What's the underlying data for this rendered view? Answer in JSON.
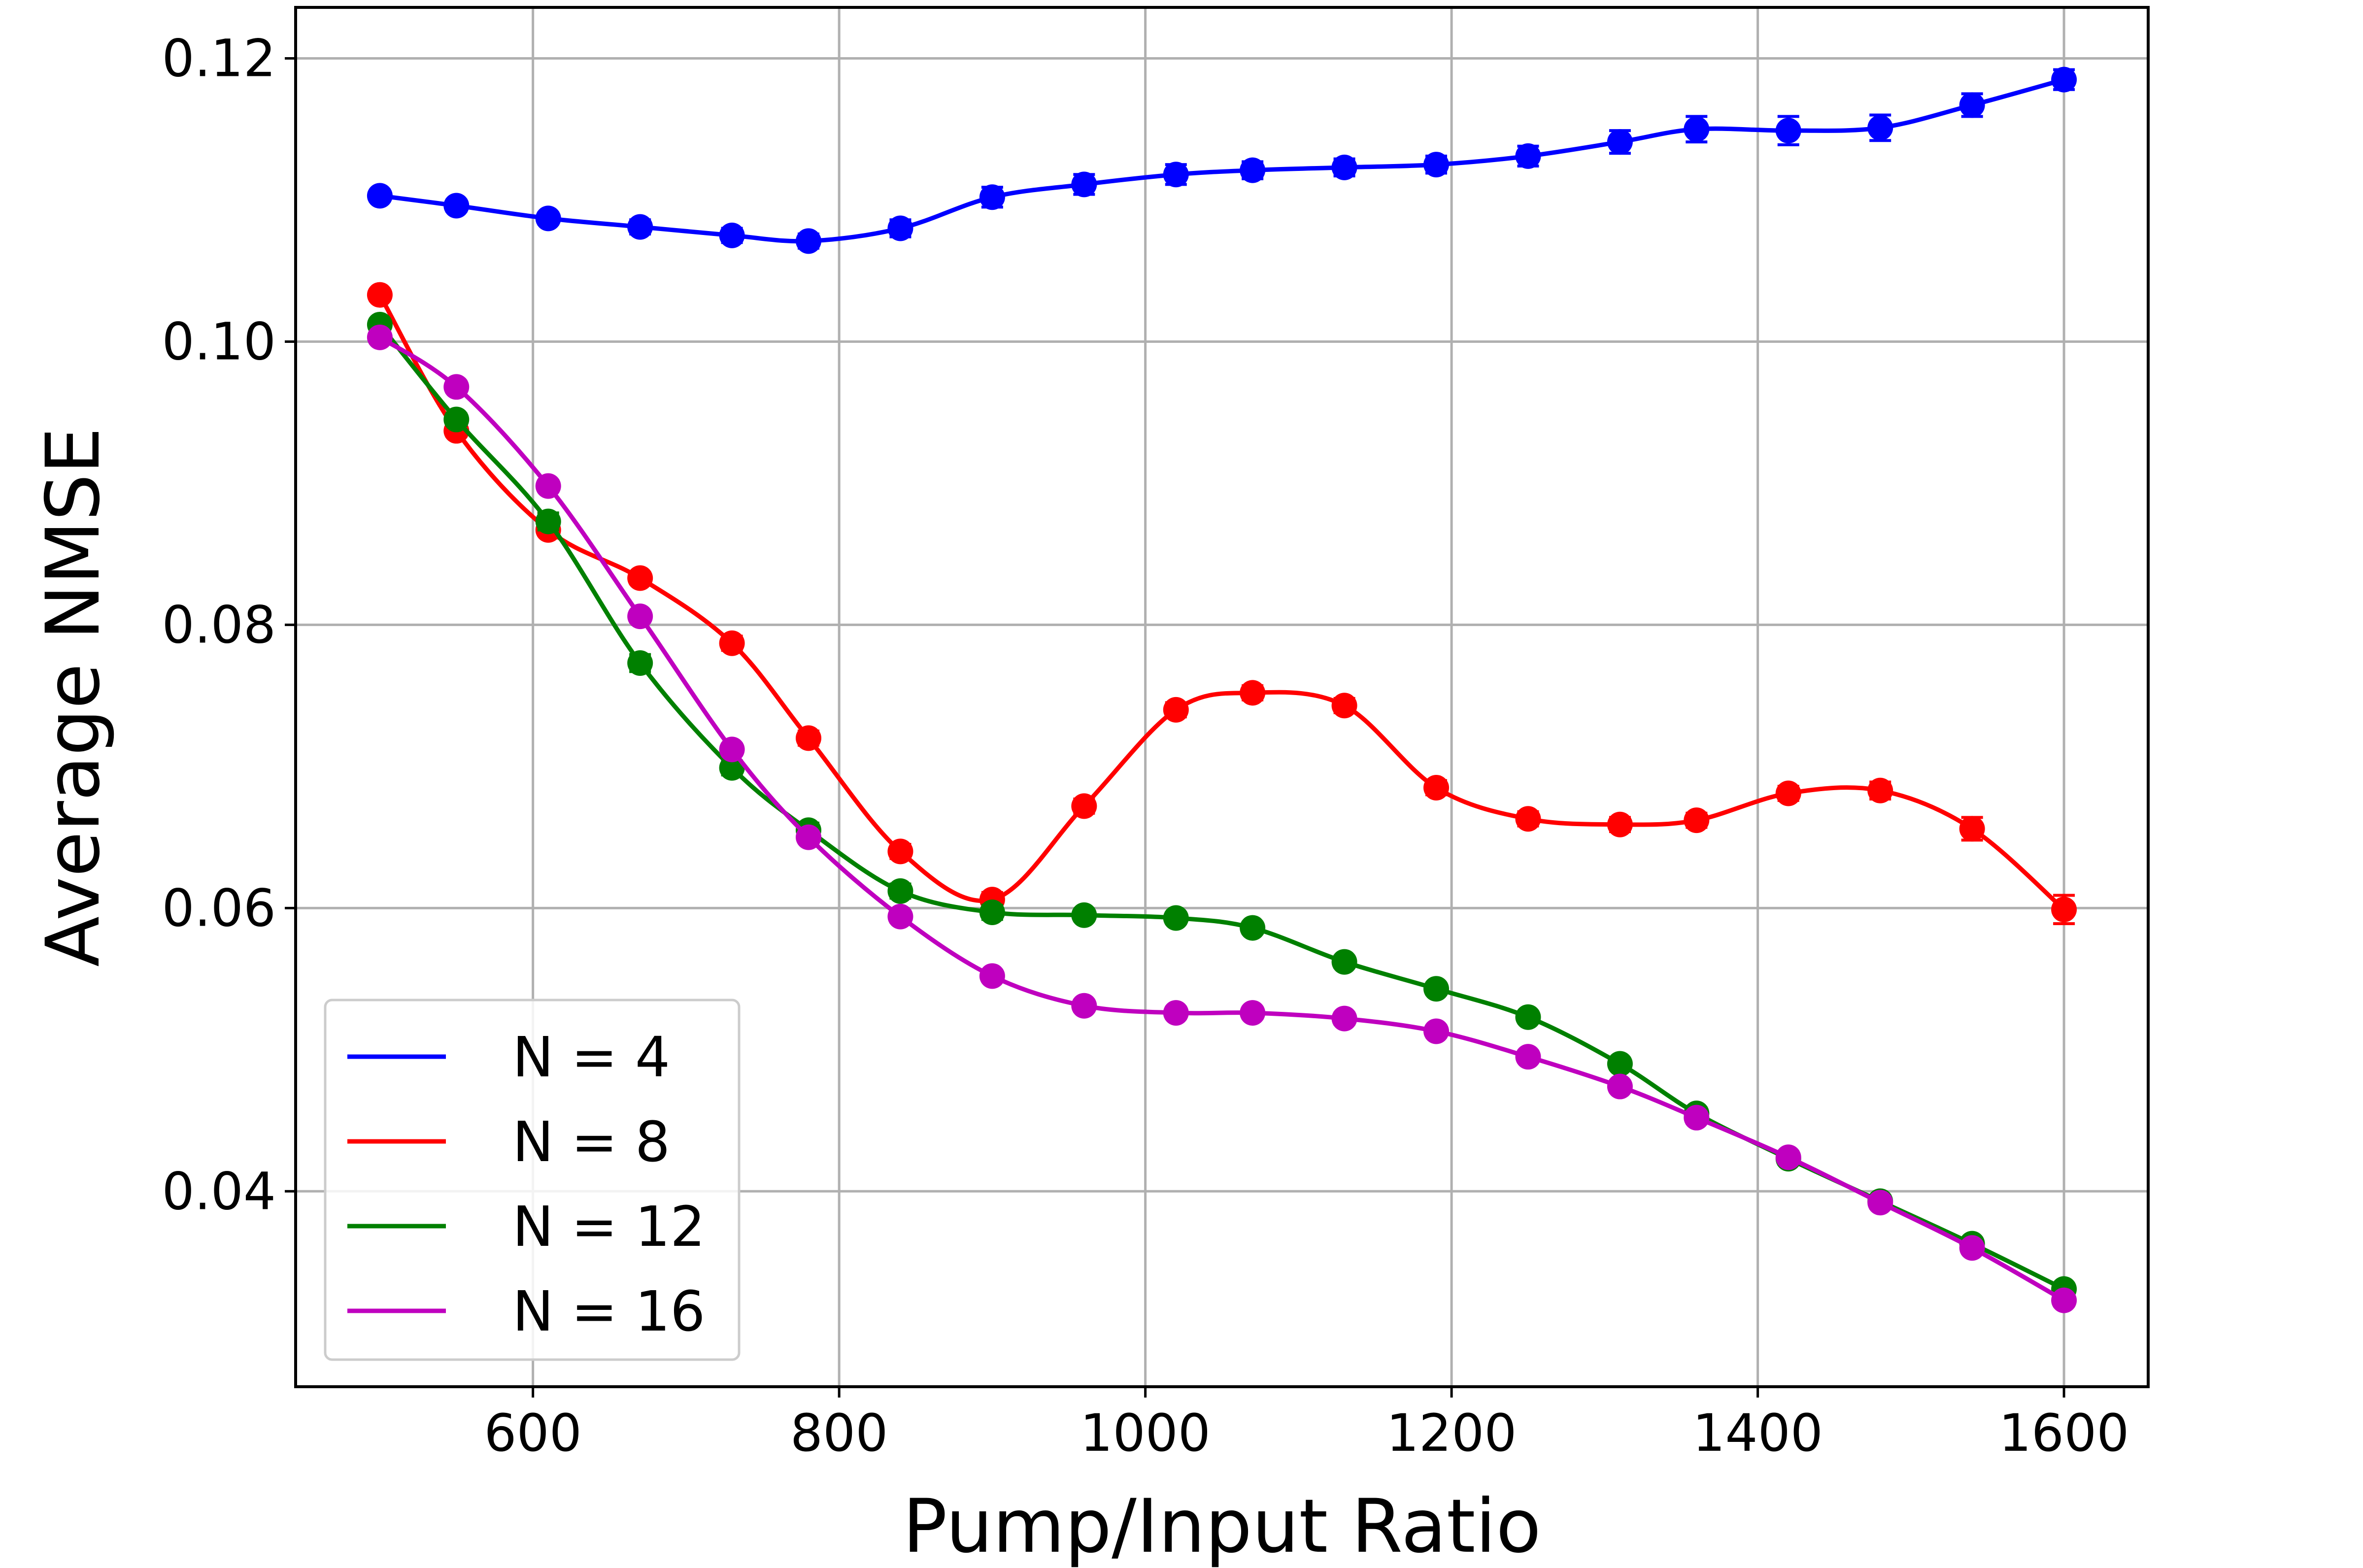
{
  "chart_data": {
    "type": "line",
    "title": "",
    "xlabel": "Pump/Input Ratio",
    "ylabel": "Average NMSE",
    "xlim": [
      445,
      1655
    ],
    "ylim": [
      0.0262,
      0.1236
    ],
    "xticks": [
      600,
      800,
      1000,
      1200,
      1400,
      1600
    ],
    "yticks": [
      0.04,
      0.06,
      0.08,
      0.1,
      0.12
    ],
    "ytick_labels": [
      "0.04",
      "0.06",
      "0.08",
      "0.10",
      "0.12"
    ],
    "grid": true,
    "legend_position": "lower-left",
    "x": [
      500,
      550,
      610,
      670,
      730,
      780,
      840,
      900,
      960,
      1020,
      1070,
      1130,
      1190,
      1250,
      1310,
      1360,
      1420,
      1480,
      1540,
      1600
    ],
    "series": [
      {
        "name": "N = 4",
        "color": "#0000ff",
        "values": [
          0.1103,
          0.1096,
          0.1087,
          0.1081,
          0.1075,
          0.1071,
          0.108,
          0.1102,
          0.1111,
          0.1118,
          0.1121,
          0.1123,
          0.1125,
          0.1131,
          0.1141,
          0.115,
          0.1149,
          0.1151,
          0.1167,
          0.1185
        ],
        "errors": [
          0.0004,
          0.0004,
          0.0004,
          0.0005,
          0.0005,
          0.0005,
          0.0006,
          0.0007,
          0.0007,
          0.0007,
          0.0006,
          0.0006,
          0.0006,
          0.0007,
          0.0008,
          0.0009,
          0.001,
          0.0009,
          0.0008,
          0.0007
        ]
      },
      {
        "name": "N = 8",
        "color": "#ff0000",
        "values": [
          0.1033,
          0.0937,
          0.0867,
          0.0833,
          0.0787,
          0.072,
          0.064,
          0.0606,
          0.0672,
          0.074,
          0.0752,
          0.0743,
          0.0685,
          0.0663,
          0.0659,
          0.0662,
          0.0681,
          0.0683,
          0.0656,
          0.0599
        ],
        "errors": [
          0.0004,
          0.0004,
          0.0004,
          0.0004,
          0.0005,
          0.0005,
          0.0005,
          0.0005,
          0.0005,
          0.0005,
          0.0005,
          0.0005,
          0.0005,
          0.0005,
          0.0005,
          0.0005,
          0.0005,
          0.0006,
          0.0008,
          0.001
        ]
      },
      {
        "name": "N = 12",
        "color": "#008000",
        "values": [
          0.1012,
          0.0945,
          0.0873,
          0.0773,
          0.0699,
          0.0655,
          0.0612,
          0.0597,
          0.0595,
          0.0593,
          0.0586,
          0.0562,
          0.0543,
          0.0523,
          0.049,
          0.0455,
          0.0423,
          0.0393,
          0.0363,
          0.0331
        ],
        "errors": [
          0.0004,
          0.0004,
          0.0006,
          0.0006,
          0.0005,
          0.0005,
          0.0005,
          0.0005,
          0.0004,
          0.0004,
          0.0004,
          0.0004,
          0.0004,
          0.0004,
          0.0004,
          0.0004,
          0.0004,
          0.0004,
          0.0004,
          0.0004
        ]
      },
      {
        "name": "N = 16",
        "color": "#bf00bf",
        "values": [
          0.1003,
          0.0968,
          0.0898,
          0.0806,
          0.0712,
          0.065,
          0.0594,
          0.0552,
          0.0531,
          0.0526,
          0.0526,
          0.0522,
          0.0513,
          0.0495,
          0.0474,
          0.0452,
          0.0424,
          0.0392,
          0.036,
          0.0323
        ],
        "errors": [
          0.0004,
          0.0004,
          0.0004,
          0.0004,
          0.0004,
          0.0004,
          0.0004,
          0.0004,
          0.0004,
          0.0004,
          0.0004,
          0.0004,
          0.0004,
          0.0004,
          0.0004,
          0.0004,
          0.0004,
          0.0004,
          0.0004,
          0.0004
        ]
      }
    ]
  }
}
